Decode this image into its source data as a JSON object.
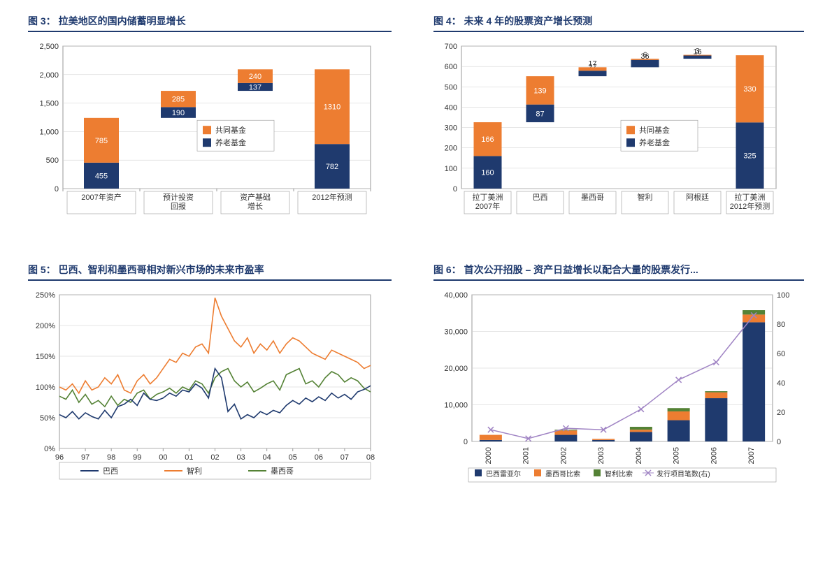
{
  "colors": {
    "navy": "#1f3a6e",
    "orange": "#ed7d31",
    "green": "#548235",
    "purple": "#a084c4",
    "border": "#999999",
    "grid": "#cccccc",
    "text": "#333333"
  },
  "chart3": {
    "type": "stacked-bar-waterfall",
    "fignum": "图 3：",
    "title": "拉美地区的国内储蓄明显增长",
    "ylim": [
      0,
      2500
    ],
    "ytick_step": 500,
    "yticks": [
      "0",
      "500",
      "1,000",
      "1,500",
      "2,000",
      "2,500"
    ],
    "legend": {
      "mutual": "共同基金",
      "pension": "养老基金"
    },
    "bars": [
      {
        "cat": "2007年资产",
        "base": 0,
        "pension": 455,
        "mutual": 785
      },
      {
        "cat": "预计投资\n回报",
        "base": 1240,
        "pension": 190,
        "mutual": 285
      },
      {
        "cat": "资产基础\n增长",
        "base": 1715,
        "pension": 137,
        "mutual": 240
      },
      {
        "cat": "2012年预测",
        "base": 0,
        "pension": 782,
        "mutual": 1310
      }
    ]
  },
  "chart4": {
    "type": "stacked-bar-waterfall",
    "fignum": "图 4：",
    "title": "未来 4 年的股票资产增长预测",
    "ylim": [
      0,
      700
    ],
    "ytick_step": 100,
    "yticks": [
      "0",
      "100",
      "200",
      "300",
      "400",
      "500",
      "600",
      "700"
    ],
    "legend": {
      "mutual": "共同基金",
      "pension": "养老基金"
    },
    "bars": [
      {
        "cat": "拉丁美洲\n2007年",
        "base": 0,
        "pension": 160,
        "mutual": 166
      },
      {
        "cat": "巴西",
        "base": 326,
        "pension": 87,
        "mutual": 139
      },
      {
        "cat": "墨西哥",
        "base": 552,
        "pension": 27,
        "mutual": 17
      },
      {
        "cat": "智利",
        "base": 596,
        "pension": 36,
        "mutual": 6
      },
      {
        "cat": "阿根廷",
        "base": 638,
        "pension": 16,
        "mutual": 3
      },
      {
        "cat": "拉丁美洲\n2012年预测",
        "base": 0,
        "pension": 325,
        "mutual": 330
      }
    ]
  },
  "chart5": {
    "type": "line",
    "fignum": "图 5：",
    "title": "巴西、智利和墨西哥相对新兴市场的未来市盈率",
    "ylim": [
      0,
      250
    ],
    "ytick_step": 50,
    "yticks": [
      "0%",
      "50%",
      "100%",
      "150%",
      "200%",
      "250%"
    ],
    "xticks": [
      "96",
      "97",
      "98",
      "99",
      "00",
      "01",
      "02",
      "03",
      "04",
      "05",
      "06",
      "07",
      "08"
    ],
    "legend": {
      "brazil": "巴西",
      "chile": "智利",
      "mexico": "墨西哥"
    },
    "series": {
      "chile": [
        100,
        95,
        105,
        90,
        110,
        95,
        100,
        115,
        105,
        120,
        95,
        90,
        110,
        120,
        105,
        115,
        130,
        145,
        140,
        155,
        150,
        165,
        170,
        155,
        245,
        215,
        195,
        175,
        165,
        180,
        155,
        170,
        160,
        175,
        155,
        170,
        180,
        175,
        165,
        155,
        150,
        145,
        160,
        155,
        150,
        145,
        140,
        130,
        135
      ],
      "mexico": [
        85,
        80,
        95,
        75,
        88,
        72,
        78,
        68,
        85,
        70,
        80,
        75,
        90,
        95,
        80,
        88,
        92,
        98,
        90,
        100,
        95,
        110,
        105,
        90,
        115,
        125,
        130,
        110,
        100,
        108,
        92,
        98,
        105,
        110,
        95,
        120,
        125,
        130,
        105,
        110,
        100,
        115,
        125,
        120,
        108,
        115,
        110,
        98,
        92
      ],
      "brazil": [
        55,
        50,
        60,
        48,
        58,
        52,
        48,
        62,
        50,
        68,
        72,
        80,
        70,
        90,
        80,
        78,
        82,
        90,
        85,
        95,
        92,
        105,
        98,
        82,
        130,
        115,
        60,
        72,
        48,
        55,
        50,
        60,
        55,
        62,
        58,
        70,
        78,
        72,
        82,
        76,
        84,
        78,
        90,
        82,
        88,
        80,
        92,
        96,
        102
      ]
    }
  },
  "chart6": {
    "type": "stacked-bar-plus-line",
    "fignum": "图 6：",
    "title": "首次公开招股 – 资产日益增长以配合大量的股票发行...",
    "y1lim": [
      0,
      40000
    ],
    "y1tick_step": 10000,
    "y1ticks": [
      "0",
      "10,000",
      "20,000",
      "30,000",
      "40,000"
    ],
    "y2lim": [
      0,
      100
    ],
    "y2tick_step": 20,
    "y2ticks": [
      "0",
      "20",
      "40",
      "60",
      "80",
      "100"
    ],
    "xticks": [
      "2000",
      "2001",
      "2002",
      "2003",
      "2004",
      "2005",
      "2006",
      "2007"
    ],
    "legend": {
      "brl": "巴西雷亚尔",
      "mxn": "墨西哥比索",
      "clp": "智利比索",
      "deals": "发行项目笔数(右)"
    },
    "bars": [
      {
        "brl": 400,
        "mxn": 1400,
        "clp": 0
      },
      {
        "brl": 0,
        "mxn": 0,
        "clp": 0
      },
      {
        "brl": 1800,
        "mxn": 1200,
        "clp": 200
      },
      {
        "brl": 400,
        "mxn": 300,
        "clp": 0
      },
      {
        "brl": 2600,
        "mxn": 600,
        "clp": 800
      },
      {
        "brl": 5800,
        "mxn": 2400,
        "clp": 900
      },
      {
        "brl": 11800,
        "mxn": 1600,
        "clp": 300
      },
      {
        "brl": 32500,
        "mxn": 2100,
        "clp": 1200
      }
    ],
    "deals_line": [
      8,
      2,
      9,
      8,
      22,
      42,
      54,
      86
    ]
  }
}
